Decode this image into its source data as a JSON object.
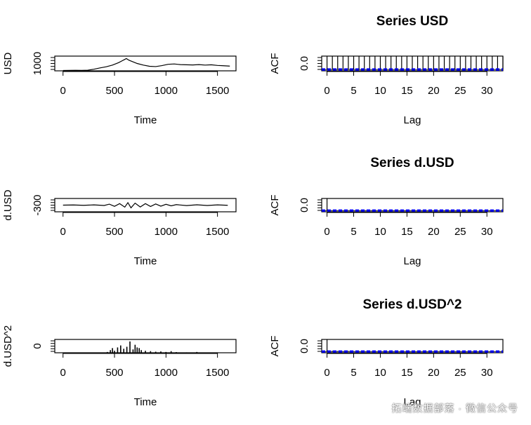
{
  "watermark": "拓端数据部落 · 微信公众号",
  "colors": {
    "series": "#000000",
    "ci": "#0000ff",
    "frame": "#000000"
  },
  "chart_data": [
    {
      "type": "line",
      "title": "",
      "xlabel": "Time",
      "ylabel": "USD",
      "xticks": [
        0,
        500,
        1000,
        1500
      ],
      "yticks": [
        1000
      ],
      "xlim": [
        -80,
        1680
      ],
      "ylim": [
        800,
        1700
      ],
      "x": [
        0,
        60,
        120,
        180,
        240,
        300,
        360,
        420,
        480,
        540,
        570,
        600,
        615,
        640,
        680,
        720,
        780,
        840,
        900,
        960,
        1020,
        1080,
        1140,
        1200,
        1260,
        1320,
        1380,
        1440,
        1500,
        1560,
        1620
      ],
      "y": [
        820,
        830,
        835,
        830,
        840,
        900,
        980,
        1050,
        1150,
        1300,
        1400,
        1500,
        1550,
        1450,
        1350,
        1250,
        1150,
        1080,
        1060,
        1120,
        1200,
        1220,
        1180,
        1170,
        1160,
        1180,
        1150,
        1170,
        1130,
        1110,
        1090
      ]
    },
    {
      "type": "bar",
      "title": "Series  USD",
      "xlabel": "Lag",
      "ylabel": "ACF",
      "xticks": [
        0,
        5,
        10,
        15,
        20,
        25,
        30
      ],
      "yticks": [
        0.0
      ],
      "xlim": [
        -1,
        33
      ],
      "ylim": [
        -0.1,
        1.0
      ],
      "ci": 0.05,
      "x": [
        0,
        1,
        2,
        3,
        4,
        5,
        6,
        7,
        8,
        9,
        10,
        11,
        12,
        13,
        14,
        15,
        16,
        17,
        18,
        19,
        20,
        21,
        22,
        23,
        24,
        25,
        26,
        27,
        28,
        29,
        30,
        31,
        32,
        33
      ],
      "y": [
        1,
        1,
        1,
        1,
        1,
        1,
        1,
        1,
        1,
        1,
        1,
        1,
        1,
        1,
        1,
        1,
        1,
        1,
        1,
        1,
        1,
        1,
        1,
        1,
        1,
        1,
        1,
        1,
        1,
        1,
        1,
        1,
        1,
        1
      ]
    },
    {
      "type": "line",
      "title": "",
      "xlabel": "Time",
      "ylabel": "d.USD",
      "xticks": [
        0,
        500,
        1000,
        1500
      ],
      "yticks": [
        -300
      ],
      "xlim": [
        -80,
        1680
      ],
      "ylim": [
        -400,
        400
      ],
      "x": [
        0,
        100,
        200,
        300,
        400,
        450,
        500,
        550,
        600,
        630,
        660,
        700,
        750,
        800,
        850,
        900,
        950,
        1000,
        1050,
        1100,
        1200,
        1300,
        1400,
        1500,
        1600
      ],
      "y": [
        0,
        10,
        -10,
        15,
        -20,
        60,
        -70,
        90,
        -120,
        150,
        -160,
        120,
        -110,
        90,
        -80,
        70,
        -60,
        50,
        -40,
        30,
        -25,
        20,
        -20,
        15,
        -10
      ]
    },
    {
      "type": "bar",
      "title": "Series  d.USD",
      "xlabel": "Lag",
      "ylabel": "ACF",
      "xticks": [
        0,
        5,
        10,
        15,
        20,
        25,
        30
      ],
      "yticks": [
        0.0
      ],
      "xlim": [
        -1,
        33
      ],
      "ylim": [
        -0.1,
        1.0
      ],
      "ci": 0.05,
      "x": [
        0,
        1,
        2,
        3,
        4,
        5,
        6,
        7,
        8,
        9,
        10,
        11,
        12,
        13,
        14,
        15,
        16,
        17,
        18,
        19,
        20,
        21,
        22,
        23,
        24,
        25,
        26,
        27,
        28,
        29,
        30,
        31,
        32,
        33
      ],
      "y": [
        1,
        0.02,
        -0.01,
        0.01,
        0.02,
        -0.02,
        0.01,
        0,
        0.01,
        -0.01,
        0.02,
        0.01,
        -0.01,
        0,
        0.01,
        0.02,
        -0.01,
        0,
        0.01,
        -0.02,
        0.01,
        0,
        0.01,
        0.01,
        -0.01,
        0,
        0.02,
        -0.01,
        0.01,
        0,
        0.01,
        -0.01,
        0,
        0.01
      ]
    },
    {
      "type": "bar",
      "title": "",
      "xlabel": "Time",
      "ylabel": "d.USD^2",
      "xticks": [
        0,
        500,
        1000,
        1500
      ],
      "yticks": [
        0
      ],
      "xlim": [
        -80,
        1680
      ],
      "ylim": [
        0,
        100000
      ],
      "x": [
        0,
        100,
        200,
        300,
        400,
        430,
        460,
        480,
        500,
        530,
        560,
        590,
        620,
        650,
        680,
        700,
        720,
        740,
        760,
        800,
        850,
        900,
        950,
        1000,
        1050,
        1100,
        1200,
        1300,
        1400,
        1500,
        1600
      ],
      "y": [
        200,
        300,
        200,
        500,
        2000,
        6000,
        20000,
        35000,
        15000,
        40000,
        55000,
        30000,
        45000,
        85000,
        25000,
        60000,
        40000,
        35000,
        20000,
        15000,
        12000,
        8000,
        10000,
        6000,
        12000,
        5000,
        3000,
        6000,
        2000,
        3000,
        1000
      ]
    },
    {
      "type": "bar",
      "title": "Series  d.USD^2",
      "xlabel": "Lag",
      "ylabel": "ACF",
      "xticks": [
        0,
        5,
        10,
        15,
        20,
        25,
        30
      ],
      "yticks": [
        0.0
      ],
      "xlim": [
        -1,
        33
      ],
      "ylim": [
        -0.1,
        1.0
      ],
      "ci": 0.05,
      "x": [
        0,
        1,
        2,
        3,
        4,
        5,
        6,
        7,
        8,
        9,
        10,
        11,
        12,
        13,
        14,
        15,
        16,
        17,
        18,
        19,
        20,
        21,
        22,
        23,
        24,
        25,
        26,
        27,
        28,
        29,
        30,
        31,
        32,
        33
      ],
      "y": [
        1,
        0.06,
        0.05,
        0.04,
        0.05,
        0.03,
        0.04,
        0.03,
        0.04,
        0.02,
        0.03,
        0.04,
        0.02,
        0.03,
        0.02,
        0.03,
        0.02,
        0.03,
        0.02,
        0.02,
        0.03,
        0.02,
        0.01,
        0.02,
        0.02,
        0.03,
        0.01,
        0.02,
        0.02,
        0.01,
        0.02,
        0.01,
        0.02,
        0.01
      ]
    }
  ]
}
